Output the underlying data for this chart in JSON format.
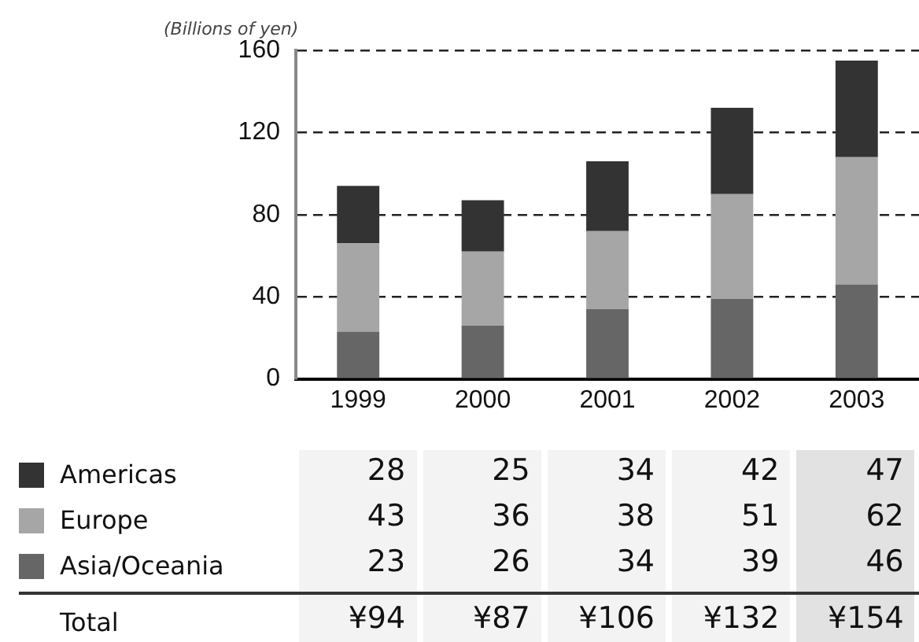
{
  "chart_data": {
    "type": "bar",
    "ylabel": "(Billions of yen)",
    "categories": [
      "1999",
      "2000",
      "2001",
      "2002",
      "2003"
    ],
    "series": [
      {
        "name": "Asia/Oceania",
        "color": "#666666",
        "values": [
          23,
          26,
          34,
          39,
          46
        ]
      },
      {
        "name": "Europe",
        "color": "#a6a6a6",
        "values": [
          43,
          36,
          38,
          51,
          62
        ]
      },
      {
        "name": "Americas",
        "color": "#333333",
        "values": [
          28,
          25,
          34,
          42,
          47
        ]
      }
    ],
    "stacked": true,
    "ylim": [
      0,
      160
    ],
    "yticks": [
      0,
      40,
      80,
      120,
      160
    ],
    "grid": "y",
    "legend": "bottom left",
    "data_labels": true,
    "annotations": [
      "Total",
      "¥94",
      "¥87",
      "¥106",
      "¥132",
      "¥154"
    ]
  }
}
